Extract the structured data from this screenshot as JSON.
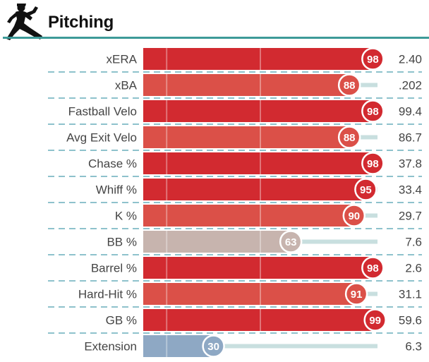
{
  "section": {
    "title": "Pitching",
    "icon": "pitcher-icon"
  },
  "colors": {
    "rule": "#3d9a98",
    "divider": "#4a9dae",
    "track": "#c8dfdf",
    "percentile_high": "#d22a30",
    "percentile_mid_high": "#db5048",
    "percentile_mid": "#c7b4ae",
    "percentile_low": "#8ea8c4"
  },
  "chart_data": {
    "type": "bar",
    "title": "Pitching",
    "xlabel": "",
    "ylabel": "",
    "xlim": [
      0,
      100
    ],
    "categories": [
      "xERA",
      "xBA",
      "Fastball Velo",
      "Avg Exit Velo",
      "Chase %",
      "Whiff %",
      "K %",
      "BB %",
      "Barrel %",
      "Hard-Hit %",
      "GB %",
      "Extension"
    ],
    "percentiles": [
      98,
      88,
      98,
      88,
      98,
      95,
      90,
      63,
      98,
      91,
      99,
      30
    ],
    "stat_values": [
      "2.40",
      ".202",
      "99.4",
      "86.7",
      "37.8",
      "33.4",
      "29.7",
      "7.6",
      "2.6",
      "31.1",
      "59.6",
      "6.3"
    ],
    "colors": [
      "#d22a30",
      "#db5048",
      "#d22a30",
      "#db5048",
      "#d22a30",
      "#d22a30",
      "#db5048",
      "#c7b4ae",
      "#d22a30",
      "#db5048",
      "#d22a30",
      "#8ea8c4"
    ]
  }
}
